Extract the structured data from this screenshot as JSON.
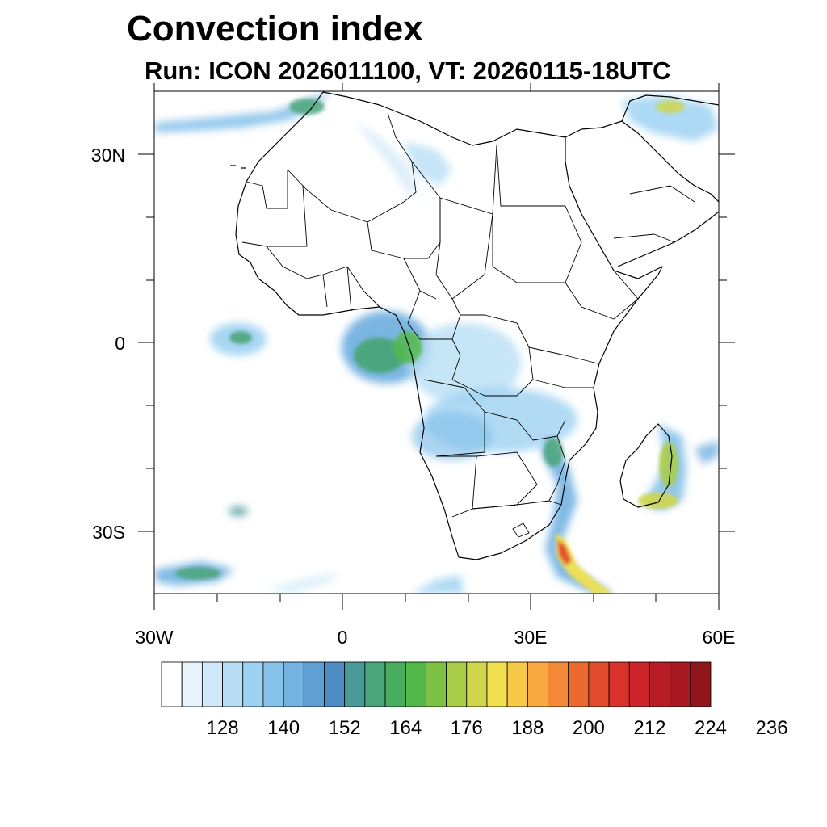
{
  "title": "Convection index",
  "subtitle": "Run: ICON 2026011100,  VT: 20260115-18UTC",
  "axes": {
    "lat_labels": [
      "30N",
      "0",
      "30S"
    ],
    "lon_labels": [
      "30W",
      "0",
      "30E",
      "60E"
    ],
    "lon_range": [
      -30,
      60
    ],
    "lat_range": [
      -40,
      40
    ]
  },
  "colorbar": {
    "labels": [
      "128",
      "140",
      "152",
      "164",
      "176",
      "188",
      "200",
      "212",
      "224",
      "236"
    ],
    "colors": [
      "#ffffff",
      "#e8f4fc",
      "#cfe9f8",
      "#b8def5",
      "#9dd2f2",
      "#86c2ea",
      "#74b2e2",
      "#5f9fd4",
      "#4f8cc4",
      "#4a9a9a",
      "#4aa57a",
      "#48ad5c",
      "#52b84a",
      "#7cc044",
      "#a8cc48",
      "#cfd64c",
      "#f0e050",
      "#f8c848",
      "#f8a840",
      "#f48a38",
      "#ec6a30",
      "#e24c2c",
      "#d8322a",
      "#cc2428",
      "#b81c24",
      "#a81820",
      "#90161c"
    ]
  }
}
